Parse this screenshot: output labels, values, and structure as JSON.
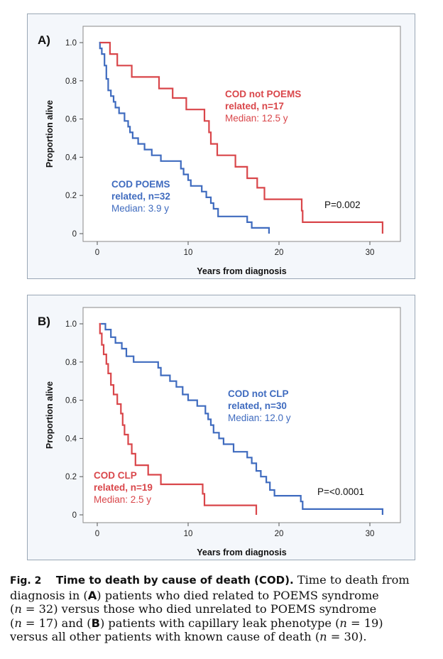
{
  "chart_data": [
    {
      "type": "line",
      "subtype": "kaplan-meier",
      "panel_label": "A)",
      "xlabel": "Years from diagnosis",
      "ylabel": "Proportion alive",
      "xlim": [
        -1,
        32.5
      ],
      "ylim": [
        -0.02,
        1.03
      ],
      "x_ticks": [
        0,
        10,
        20,
        30
      ],
      "x_tick_labels": [
        "0",
        "10",
        "20",
        "30"
      ],
      "y_ticks": [
        0,
        0.2,
        0.4,
        0.6,
        0.8,
        1.0
      ],
      "y_tick_labels": [
        "0",
        "0.2",
        "0.4",
        "0.6",
        "0.8",
        "1.0"
      ],
      "grid": false,
      "pvalue": "P=0.002",
      "series": [
        {
          "color": "#3f6bbf",
          "label_lines": [
            "COD POEMS",
            "related, n=32",
            "Median: 3.9 y"
          ],
          "steps": [
            [
              0.2,
              1.0
            ],
            [
              0.3,
              0.97
            ],
            [
              0.5,
              0.94
            ],
            [
              0.8,
              0.88
            ],
            [
              1.0,
              0.81
            ],
            [
              1.2,
              0.75
            ],
            [
              1.5,
              0.72
            ],
            [
              1.8,
              0.69
            ],
            [
              2.0,
              0.66
            ],
            [
              2.4,
              0.63
            ],
            [
              3.0,
              0.59
            ],
            [
              3.4,
              0.56
            ],
            [
              3.6,
              0.53
            ],
            [
              3.9,
              0.5
            ],
            [
              4.5,
              0.47
            ],
            [
              5.2,
              0.44
            ],
            [
              6.0,
              0.41
            ],
            [
              7.0,
              0.38
            ],
            [
              7.2,
              0.38
            ],
            [
              9.2,
              0.34
            ],
            [
              9.5,
              0.31
            ],
            [
              10.0,
              0.28
            ],
            [
              10.3,
              0.25
            ],
            [
              11.5,
              0.22
            ],
            [
              12.0,
              0.19
            ],
            [
              12.5,
              0.16
            ],
            [
              12.8,
              0.13
            ],
            [
              13.3,
              0.09
            ],
            [
              16.5,
              0.06
            ],
            [
              17.0,
              0.03
            ],
            [
              18.9,
              0.0
            ]
          ]
        },
        {
          "color": "#d9464a",
          "label_lines": [
            "COD not POEMS",
            "related, n=17",
            "Median: 12.5 y"
          ],
          "steps": [
            [
              0.3,
              1.0
            ],
            [
              1.4,
              0.94
            ],
            [
              2.2,
              0.88
            ],
            [
              3.8,
              0.82
            ],
            [
              6.8,
              0.76
            ],
            [
              8.3,
              0.71
            ],
            [
              9.8,
              0.65
            ],
            [
              11.8,
              0.59
            ],
            [
              12.3,
              0.53
            ],
            [
              12.5,
              0.47
            ],
            [
              13.2,
              0.41
            ],
            [
              15.2,
              0.35
            ],
            [
              16.5,
              0.29
            ],
            [
              17.6,
              0.24
            ],
            [
              18.4,
              0.18
            ],
            [
              18.6,
              0.18
            ],
            [
              22.5,
              0.12
            ],
            [
              22.6,
              0.06
            ],
            [
              31.4,
              0.0
            ]
          ]
        }
      ]
    },
    {
      "type": "line",
      "subtype": "kaplan-meier",
      "panel_label": "B)",
      "xlabel": "Years from diagnosis",
      "ylabel": "Proportion alive",
      "xlim": [
        -1,
        32.5
      ],
      "ylim": [
        -0.02,
        1.03
      ],
      "x_ticks": [
        0,
        10,
        20,
        30
      ],
      "x_tick_labels": [
        "0",
        "10",
        "20",
        "30"
      ],
      "y_ticks": [
        0,
        0.2,
        0.4,
        0.6,
        0.8,
        1.0
      ],
      "y_tick_labels": [
        "0",
        "0.2",
        "0.4",
        "0.6",
        "0.8",
        "1.0"
      ],
      "grid": false,
      "pvalue": "P=<0.0001",
      "series": [
        {
          "color": "#3f6bbf",
          "label_lines": [
            "COD not CLP",
            "related, n=30",
            "Median: 12.0 y"
          ],
          "steps": [
            [
              0.4,
              1.0
            ],
            [
              0.9,
              0.97
            ],
            [
              1.5,
              0.93
            ],
            [
              2.0,
              0.9
            ],
            [
              2.7,
              0.87
            ],
            [
              3.2,
              0.83
            ],
            [
              4.0,
              0.8
            ],
            [
              6.7,
              0.77
            ],
            [
              7.0,
              0.73
            ],
            [
              8.0,
              0.7
            ],
            [
              8.7,
              0.67
            ],
            [
              9.4,
              0.63
            ],
            [
              10.0,
              0.6
            ],
            [
              11.0,
              0.57
            ],
            [
              11.9,
              0.53
            ],
            [
              12.2,
              0.5
            ],
            [
              12.5,
              0.47
            ],
            [
              12.8,
              0.43
            ],
            [
              13.4,
              0.4
            ],
            [
              13.9,
              0.37
            ],
            [
              15.0,
              0.33
            ],
            [
              16.5,
              0.3
            ],
            [
              17.0,
              0.27
            ],
            [
              17.5,
              0.23
            ],
            [
              18.0,
              0.2
            ],
            [
              18.6,
              0.17
            ],
            [
              19.0,
              0.13
            ],
            [
              19.5,
              0.1
            ],
            [
              22.4,
              0.07
            ],
            [
              22.6,
              0.03
            ],
            [
              31.4,
              0.0
            ]
          ]
        },
        {
          "color": "#d9464a",
          "label_lines": [
            "COD CLP",
            "related, n=19",
            "Median: 2.5 y"
          ],
          "steps": [
            [
              0.2,
              1.0
            ],
            [
              0.3,
              0.95
            ],
            [
              0.5,
              0.89
            ],
            [
              0.7,
              0.84
            ],
            [
              1.0,
              0.79
            ],
            [
              1.2,
              0.74
            ],
            [
              1.5,
              0.68
            ],
            [
              1.8,
              0.63
            ],
            [
              2.2,
              0.58
            ],
            [
              2.6,
              0.53
            ],
            [
              2.8,
              0.47
            ],
            [
              3.0,
              0.42
            ],
            [
              3.4,
              0.37
            ],
            [
              3.8,
              0.32
            ],
            [
              4.2,
              0.26
            ],
            [
              5.6,
              0.21
            ],
            [
              7.0,
              0.16
            ],
            [
              11.6,
              0.11
            ],
            [
              11.8,
              0.05
            ],
            [
              17.5,
              0.0
            ]
          ]
        }
      ]
    }
  ],
  "caption": {
    "fig_label": "Fig. 2",
    "title": "Time to death by cause of death (COD).",
    "lines": [
      [
        {
          "t": "Time to death from"
        }
      ],
      [
        {
          "t": "diagnosis in ("
        },
        {
          "t": "A",
          "b": true
        },
        {
          "t": ") patients who died related to POEMS syndrome"
        }
      ],
      [
        {
          "t": "("
        },
        {
          "t": "n",
          "i": true
        },
        {
          "t": " = 32) versus those who died unrelated to POEMS syndrome"
        }
      ],
      [
        {
          "t": "("
        },
        {
          "t": "n",
          "i": true
        },
        {
          "t": " = 17) and ("
        },
        {
          "t": "B",
          "b": true
        },
        {
          "t": ") patients with capillary leak phenotype ("
        },
        {
          "t": "n",
          "i": true
        },
        {
          "t": " = 19)"
        }
      ],
      [
        {
          "t": "versus all other patients with known cause of death ("
        },
        {
          "t": "n",
          "i": true
        },
        {
          "t": " = 30)."
        }
      ]
    ]
  }
}
